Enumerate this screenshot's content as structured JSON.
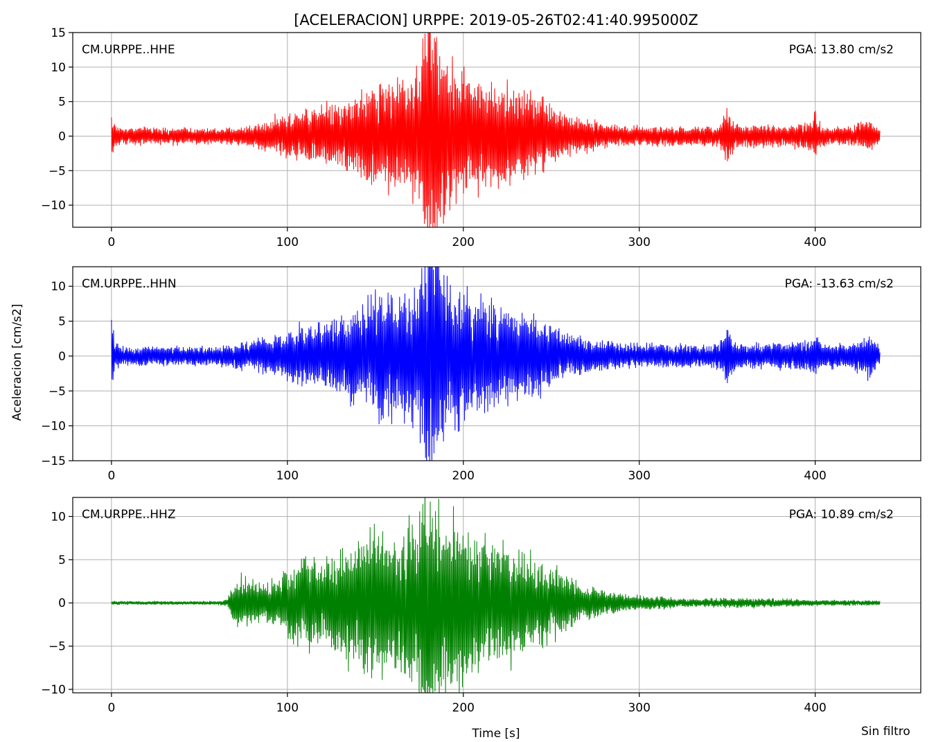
{
  "figure": {
    "title": "[ACELERACION] URPPE: 2019-05-26T02:41:40.995000Z",
    "ylabel": "Aceleracion [cm/s2]",
    "xlabel": "Time [s]",
    "footer_note": "Sin filtro"
  },
  "chart_data": [
    {
      "type": "line",
      "station": "CM.URPPE..HHE",
      "pga_label": "PGA: 13.80 cm/s2",
      "pga": 13.8,
      "color": "#ff0000",
      "xlim": [
        -22,
        460
      ],
      "ylim": [
        -13.2,
        15
      ],
      "xticks": [
        0,
        100,
        200,
        300,
        400
      ],
      "yticks": [
        -10,
        -5,
        0,
        5,
        10,
        15
      ],
      "duration": 437,
      "envelope": {
        "t": [
          0,
          2,
          6,
          30,
          60,
          70,
          80,
          95,
          110,
          120,
          135,
          150,
          165,
          175,
          180,
          185,
          190,
          200,
          215,
          230,
          245,
          260,
          280,
          300,
          330,
          345,
          350,
          355,
          365,
          380,
          398,
          400,
          403,
          420,
          430,
          437
        ],
        "amp": [
          2.5,
          1.2,
          0.9,
          0.9,
          0.8,
          0.9,
          1.2,
          2.0,
          3.0,
          3.2,
          3.8,
          5.5,
          6.0,
          7.0,
          13.8,
          11.5,
          8.0,
          6.5,
          5.5,
          5.0,
          4.0,
          2.0,
          1.3,
          1.0,
          1.0,
          1.0,
          3.0,
          1.2,
          1.2,
          1.1,
          1.5,
          2.8,
          1.1,
          1.0,
          1.8,
          0.6
        ]
      }
    },
    {
      "type": "line",
      "station": "CM.URPPE..HHN",
      "pga_label": "PGA: -13.63 cm/s2",
      "pga": -13.63,
      "color": "#0000ff",
      "xlim": [
        -22,
        460
      ],
      "ylim": [
        -15,
        12.8
      ],
      "xticks": [
        0,
        100,
        200,
        300,
        400
      ],
      "yticks": [
        -15,
        -10,
        -5,
        0,
        5,
        10
      ],
      "duration": 437,
      "envelope": {
        "t": [
          0,
          2,
          6,
          30,
          60,
          70,
          80,
          95,
          110,
          120,
          135,
          150,
          165,
          175,
          180,
          185,
          190,
          200,
          215,
          230,
          245,
          260,
          280,
          300,
          330,
          345,
          350,
          355,
          365,
          380,
          398,
          400,
          403,
          420,
          430,
          437
        ],
        "amp": [
          3.8,
          1.5,
          1.0,
          1.0,
          1.0,
          1.2,
          1.6,
          2.2,
          3.2,
          3.5,
          4.5,
          6.5,
          6.5,
          7.5,
          13.6,
          11.5,
          9.0,
          7.0,
          5.5,
          5.0,
          4.0,
          2.2,
          1.5,
          1.2,
          1.2,
          1.2,
          3.2,
          1.4,
          1.3,
          1.3,
          1.6,
          3.0,
          1.3,
          1.2,
          2.3,
          0.8
        ]
      }
    },
    {
      "type": "line",
      "station": "CM.URPPE..HHZ",
      "pga_label": "PGA: 10.89 cm/s2",
      "pga": 10.89,
      "color": "#008000",
      "xlim": [
        -22,
        460
      ],
      "ylim": [
        -10.4,
        12.2
      ],
      "xticks": [
        0,
        100,
        200,
        300,
        400
      ],
      "yticks": [
        -10,
        -5,
        0,
        5,
        10
      ],
      "duration": 437,
      "envelope": {
        "t": [
          0,
          60,
          66,
          68,
          75,
          85,
          95,
          100,
          110,
          120,
          130,
          140,
          150,
          165,
          175,
          180,
          185,
          195,
          210,
          230,
          250,
          265,
          280,
          300,
          330,
          365,
          400,
          437
        ],
        "amp": [
          0.15,
          0.15,
          0.3,
          1.5,
          2.3,
          1.6,
          2.0,
          3.0,
          4.5,
          3.5,
          4.5,
          5.5,
          6.5,
          6.0,
          7.5,
          10.9,
          8.5,
          7.0,
          5.5,
          4.5,
          3.0,
          1.8,
          1.0,
          0.6,
          0.35,
          0.4,
          0.25,
          0.2
        ]
      }
    }
  ]
}
